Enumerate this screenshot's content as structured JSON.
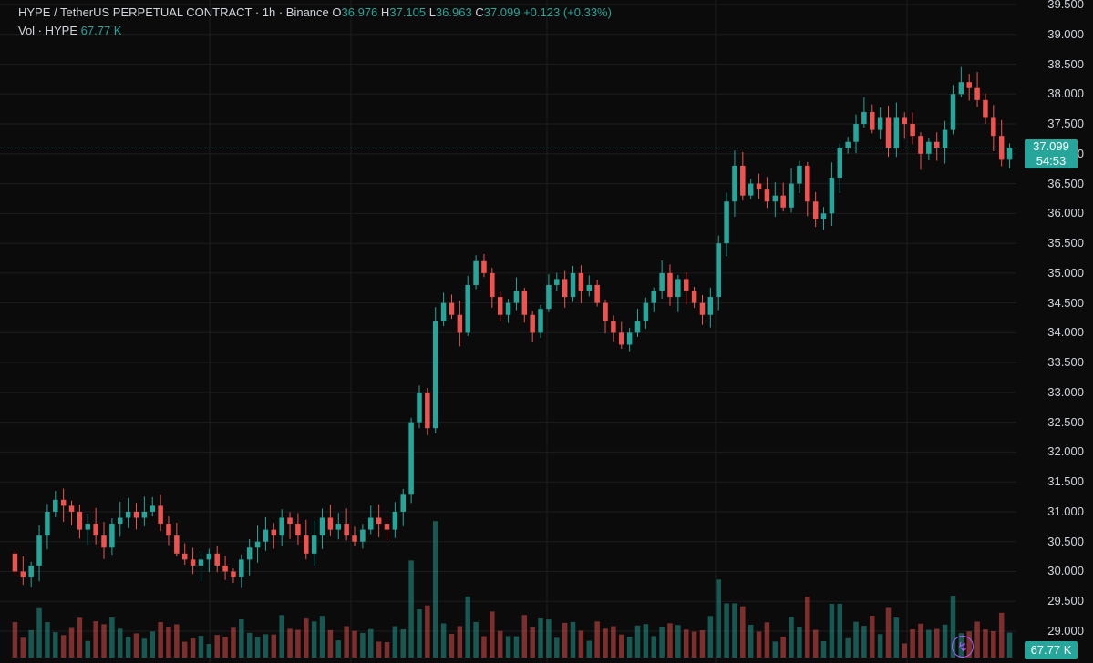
{
  "legend": {
    "symbol": "HYPE / TetherUS PERPETUAL CONTRACT · 1h · Binance",
    "o_label": "O",
    "o_value": "36.976",
    "h_label": "H",
    "h_value": "37.105",
    "l_label": "L",
    "l_value": "36.963",
    "c_label": "C",
    "c_value": "37.099",
    "change": "+0.123 (+0.33%)",
    "vol_label": "Vol · HYPE",
    "vol_value": "67.77 K"
  },
  "price_axis": [
    "39.500",
    "39.000",
    "38.500",
    "38.000",
    "37.500",
    "37.000",
    "36.500",
    "36.000",
    "35.500",
    "35.000",
    "34.500",
    "34.000",
    "33.500",
    "33.000",
    "32.500",
    "32.000",
    "31.500",
    "31.000",
    "30.500",
    "30.000",
    "29.500",
    "29.000"
  ],
  "last_price": {
    "price": "37.099",
    "countdown": "54:53"
  },
  "last_volume": "67.77 K",
  "colors": {
    "up": "#26a69a",
    "down": "#ef5350",
    "bg": "#0b0b0b",
    "grid": "#1c1c1c",
    "accent": "#b05cff"
  },
  "icons": {
    "bolt": "lightning-bolt-icon"
  },
  "chart_data": {
    "type": "candlestick",
    "interval": "1h",
    "ylim": [
      28.9,
      39.5
    ],
    "closes": [
      30.0,
      29.9,
      30.1,
      30.6,
      31.0,
      31.2,
      31.1,
      31.0,
      30.7,
      30.8,
      30.6,
      30.4,
      30.8,
      30.9,
      31.0,
      30.9,
      31.0,
      31.1,
      30.8,
      30.6,
      30.3,
      30.2,
      30.1,
      30.2,
      30.3,
      30.1,
      30.0,
      29.9,
      30.2,
      30.4,
      30.5,
      30.7,
      30.6,
      30.9,
      30.8,
      30.6,
      30.3,
      30.6,
      30.9,
      30.7,
      30.8,
      30.6,
      30.5,
      30.7,
      30.9,
      30.8,
      30.7,
      31.0,
      31.3,
      32.5,
      33.0,
      32.4,
      34.2,
      34.5,
      34.3,
      34.0,
      34.8,
      35.2,
      35.0,
      34.6,
      34.3,
      34.5,
      34.7,
      34.3,
      34.0,
      34.4,
      34.8,
      34.9,
      34.6,
      35.0,
      34.7,
      34.8,
      34.5,
      34.2,
      34.0,
      33.8,
      34.0,
      34.2,
      34.5,
      34.7,
      35.0,
      34.6,
      34.9,
      34.7,
      34.5,
      34.3,
      34.6,
      35.5,
      36.2,
      36.8,
      36.3,
      36.5,
      36.4,
      36.2,
      36.3,
      36.1,
      36.5,
      36.8,
      36.2,
      35.9,
      36.0,
      36.6,
      37.1,
      37.2,
      37.5,
      37.7,
      37.4,
      37.6,
      37.1,
      37.6,
      37.5,
      37.3,
      37.0,
      37.2,
      37.1,
      37.4,
      38.0,
      38.2,
      38.1,
      37.9,
      37.6,
      37.3,
      36.9,
      37.1
    ]
  }
}
